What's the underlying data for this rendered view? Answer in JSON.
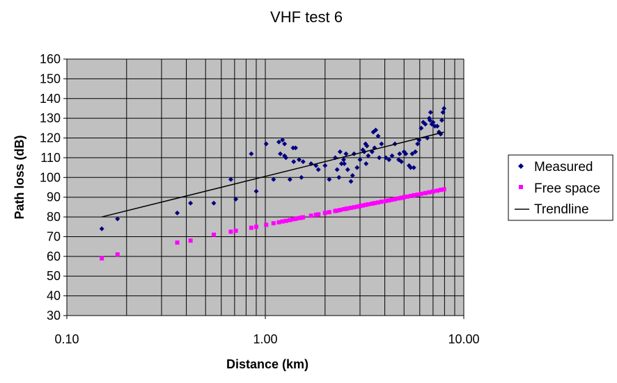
{
  "chart_data": {
    "type": "scatter",
    "title": "VHF test 6",
    "xlabel": "Distance (km)",
    "ylabel": "Path loss (dB)",
    "x_scale": "log",
    "xlim": [
      0.1,
      10
    ],
    "ylim": [
      30,
      160
    ],
    "x_tick_labels": [
      "0.10",
      "1.00",
      "10.00"
    ],
    "y_ticks": [
      30,
      40,
      50,
      60,
      70,
      80,
      90,
      100,
      110,
      120,
      130,
      140,
      150,
      160
    ],
    "grid": true,
    "plot_background": "#c0c0c0",
    "legend_position": "right",
    "series": [
      {
        "name": "Measured",
        "marker": "diamond",
        "color": "#000080",
        "points": [
          [
            0.15,
            74
          ],
          [
            0.18,
            79
          ],
          [
            0.36,
            82
          ],
          [
            0.42,
            87
          ],
          [
            0.55,
            87
          ],
          [
            0.67,
            99
          ],
          [
            0.71,
            89
          ],
          [
            0.85,
            112
          ],
          [
            0.9,
            93
          ],
          [
            1.01,
            117
          ],
          [
            1.1,
            99
          ],
          [
            1.17,
            118
          ],
          [
            1.19,
            112
          ],
          [
            1.22,
            119
          ],
          [
            1.25,
            117
          ],
          [
            1.25,
            111
          ],
          [
            1.27,
            110
          ],
          [
            1.33,
            99
          ],
          [
            1.38,
            115
          ],
          [
            1.39,
            108
          ],
          [
            1.42,
            115
          ],
          [
            1.48,
            109
          ],
          [
            1.52,
            100
          ],
          [
            1.55,
            108
          ],
          [
            1.7,
            107
          ],
          [
            1.8,
            106
          ],
          [
            1.85,
            104
          ],
          [
            2.0,
            106
          ],
          [
            2.1,
            99
          ],
          [
            2.25,
            110
          ],
          [
            2.3,
            104
          ],
          [
            2.35,
            100
          ],
          [
            2.38,
            113
          ],
          [
            2.42,
            107
          ],
          [
            2.48,
            109
          ],
          [
            2.5,
            107
          ],
          [
            2.55,
            112
          ],
          [
            2.6,
            104
          ],
          [
            2.7,
            98
          ],
          [
            2.75,
            101
          ],
          [
            2.8,
            112
          ],
          [
            2.9,
            105
          ],
          [
            3.0,
            109
          ],
          [
            3.1,
            114
          ],
          [
            3.15,
            113
          ],
          [
            3.2,
            117
          ],
          [
            3.22,
            107
          ],
          [
            3.25,
            116
          ],
          [
            3.3,
            111
          ],
          [
            3.45,
            113
          ],
          [
            3.5,
            123
          ],
          [
            3.55,
            115
          ],
          [
            3.6,
            124
          ],
          [
            3.7,
            121
          ],
          [
            3.75,
            110
          ],
          [
            3.85,
            117
          ],
          [
            4.05,
            110
          ],
          [
            4.2,
            109
          ],
          [
            4.35,
            111
          ],
          [
            4.5,
            117
          ],
          [
            4.7,
            109
          ],
          [
            4.75,
            112
          ],
          [
            4.85,
            108
          ],
          [
            5.0,
            113
          ],
          [
            5.1,
            112
          ],
          [
            5.3,
            106
          ],
          [
            5.4,
            105
          ],
          [
            5.5,
            112
          ],
          [
            5.6,
            105
          ],
          [
            5.7,
            113
          ],
          [
            5.85,
            117
          ],
          [
            5.95,
            119
          ],
          [
            6.1,
            125
          ],
          [
            6.25,
            128
          ],
          [
            6.4,
            127
          ],
          [
            6.55,
            120
          ],
          [
            6.7,
            130
          ],
          [
            6.75,
            129
          ],
          [
            6.8,
            133
          ],
          [
            6.9,
            127
          ],
          [
            7.0,
            128
          ],
          [
            7.15,
            126
          ],
          [
            7.35,
            126
          ],
          [
            7.5,
            123
          ],
          [
            7.65,
            122
          ],
          [
            7.75,
            129
          ],
          [
            7.85,
            133
          ],
          [
            7.95,
            135
          ]
        ]
      },
      {
        "name": "Free space",
        "marker": "square",
        "color": "#ff00ff",
        "points": [
          [
            0.15,
            59
          ],
          [
            0.18,
            61
          ],
          [
            0.36,
            67
          ],
          [
            0.42,
            68
          ],
          [
            0.55,
            71
          ],
          [
            0.67,
            72.5
          ],
          [
            0.71,
            73
          ],
          [
            0.85,
            74.5
          ],
          [
            0.9,
            75
          ],
          [
            1.01,
            76
          ],
          [
            1.1,
            76.8
          ],
          [
            1.17,
            77.3
          ],
          [
            1.22,
            77.7
          ],
          [
            1.27,
            78
          ],
          [
            1.33,
            78.4
          ],
          [
            1.38,
            78.8
          ],
          [
            1.42,
            79
          ],
          [
            1.48,
            79.4
          ],
          [
            1.52,
            79.6
          ],
          [
            1.55,
            79.8
          ],
          [
            1.7,
            80.6
          ],
          [
            1.8,
            81.1
          ],
          [
            1.85,
            81.3
          ],
          [
            2.0,
            82
          ],
          [
            2.1,
            82.4
          ],
          [
            2.25,
            83
          ],
          [
            2.3,
            83.2
          ],
          [
            2.38,
            83.5
          ],
          [
            2.48,
            83.9
          ],
          [
            2.55,
            84.1
          ],
          [
            2.6,
            84.3
          ],
          [
            2.7,
            84.6
          ],
          [
            2.8,
            84.9
          ],
          [
            2.9,
            85.2
          ],
          [
            3.0,
            85.5
          ],
          [
            3.1,
            85.8
          ],
          [
            3.2,
            86.1
          ],
          [
            3.3,
            86.4
          ],
          [
            3.45,
            86.7
          ],
          [
            3.55,
            87
          ],
          [
            3.7,
            87.3
          ],
          [
            3.85,
            87.7
          ],
          [
            4.05,
            88.1
          ],
          [
            4.2,
            88.4
          ],
          [
            4.35,
            88.7
          ],
          [
            4.5,
            89
          ],
          [
            4.7,
            89.4
          ],
          [
            4.85,
            89.7
          ],
          [
            5.0,
            90
          ],
          [
            5.2,
            90.3
          ],
          [
            5.4,
            90.6
          ],
          [
            5.6,
            91
          ],
          [
            5.85,
            91.3
          ],
          [
            6.1,
            91.7
          ],
          [
            6.4,
            92.1
          ],
          [
            6.7,
            92.5
          ],
          [
            7.0,
            92.9
          ],
          [
            7.35,
            93.3
          ],
          [
            7.65,
            93.7
          ],
          [
            7.95,
            94
          ]
        ]
      },
      {
        "name": "Trendline",
        "type": "line",
        "color": "#000000",
        "points": [
          [
            0.15,
            80
          ],
          [
            7.95,
            123
          ]
        ]
      }
    ]
  }
}
